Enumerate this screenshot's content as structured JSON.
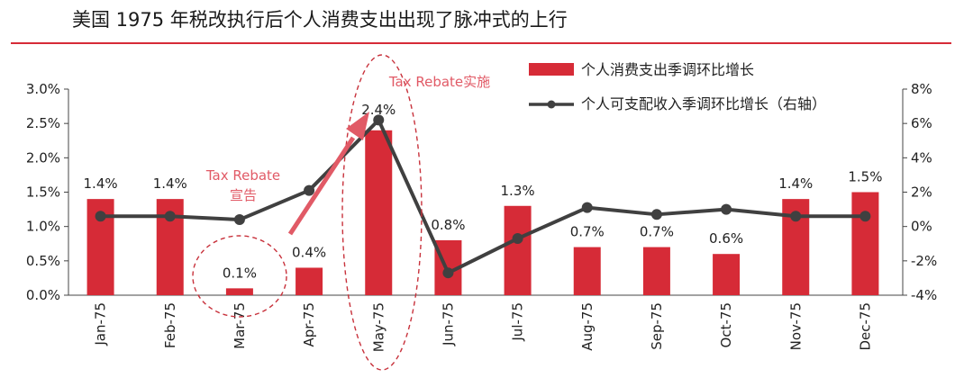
{
  "title": "美国 1975 年税改执行后个人消费支出出现了脉冲式的上行",
  "colors": {
    "bar": "#d62b37",
    "line": "#404040",
    "title_rule": "#d62b37",
    "annotation": "#e15a66",
    "circle": "#c8323c"
  },
  "chart_data": {
    "type": "bar",
    "categories": [
      "Jan-75",
      "Feb-75",
      "Mar-75",
      "Apr-75",
      "May-75",
      "Jun-75",
      "Jul-75",
      "Aug-75",
      "Sep-75",
      "Oct-75",
      "Nov-75",
      "Dec-75"
    ],
    "series": [
      {
        "name": "个人消费支出季调环比增长",
        "type": "bar",
        "axis": "left",
        "values": [
          1.4,
          1.4,
          0.1,
          0.4,
          2.4,
          0.8,
          1.3,
          0.7,
          0.7,
          0.6,
          1.4,
          1.5
        ],
        "labels": [
          "1.4%",
          "1.4%",
          "0.1%",
          "0.4%",
          "2.4%",
          "0.8%",
          "1.3%",
          "0.7%",
          "0.7%",
          "0.6%",
          "1.4%",
          "1.5%"
        ]
      },
      {
        "name": "个人可支配收入季调环比增长（右轴）",
        "type": "line",
        "axis": "right",
        "values": [
          0.6,
          0.6,
          0.4,
          2.1,
          6.2,
          -2.7,
          -0.7,
          1.1,
          0.7,
          1.0,
          0.6,
          0.6
        ]
      }
    ],
    "left_axis": {
      "min": 0,
      "max": 3,
      "ticks": [
        "0.0%",
        "0.5%",
        "1.0%",
        "1.5%",
        "2.0%",
        "2.5%",
        "3.0%"
      ]
    },
    "right_axis": {
      "min": -4,
      "max": 8,
      "ticks": [
        "-4%",
        "-2%",
        "0%",
        "2%",
        "4%",
        "6%",
        "8%"
      ]
    },
    "legend_position": "top-right",
    "grid": false,
    "annotations": {
      "announce": [
        "Tax Rebate",
        "宣告"
      ],
      "implement": "Tax Rebate实施"
    }
  }
}
